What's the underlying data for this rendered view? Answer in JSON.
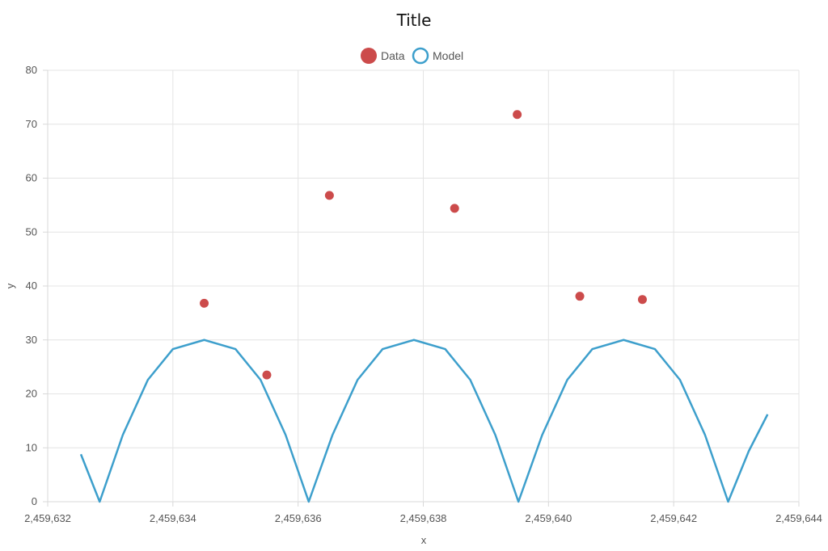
{
  "chart_data": {
    "type": "scatter",
    "title": "Title",
    "xlabel": "x",
    "ylabel": "y",
    "xlim": [
      2459632,
      2459644
    ],
    "ylim": [
      0,
      80
    ],
    "xticks": [
      2459632,
      2459634,
      2459636,
      2459638,
      2459640,
      2459642,
      2459644
    ],
    "xtick_labels": [
      "2,459,632",
      "2,459,634",
      "2,459,636",
      "2,459,638",
      "2,459,640",
      "2,459,642",
      "2,459,644"
    ],
    "yticks": [
      0,
      10,
      20,
      30,
      40,
      50,
      60,
      70,
      80
    ],
    "ytick_labels": [
      "0",
      "10",
      "20",
      "30",
      "40",
      "50",
      "60",
      "70",
      "80"
    ],
    "grid": true,
    "legend": "top-center",
    "series": [
      {
        "name": "Data",
        "type": "scatter",
        "color": "#cc4b4b",
        "x": [
          2459634.5,
          2459635.5,
          2459636.5,
          2459638.5,
          2459639.5,
          2459640.5,
          2459641.5
        ],
        "y": [
          36.8,
          23.5,
          56.8,
          54.4,
          71.8,
          38.1,
          37.5
        ]
      },
      {
        "name": "Model",
        "type": "line",
        "color": "#3d9fcc",
        "x": [
          2459632.53,
          2459632.83,
          2459633.2,
          2459633.6,
          2459634.0,
          2459634.5,
          2459635.0,
          2459635.4,
          2459635.8,
          2459636.17,
          2459636.55,
          2459636.95,
          2459637.35,
          2459637.85,
          2459638.35,
          2459638.75,
          2459639.15,
          2459639.52,
          2459639.9,
          2459640.3,
          2459640.7,
          2459641.2,
          2459641.7,
          2459642.1,
          2459642.5,
          2459642.87,
          2459643.2,
          2459643.5
        ],
        "y": [
          8.8,
          0,
          12.4,
          22.6,
          28.3,
          30.0,
          28.3,
          22.6,
          12.4,
          0,
          12.4,
          22.6,
          28.3,
          30.0,
          28.3,
          22.6,
          12.4,
          0,
          12.4,
          22.6,
          28.3,
          30.0,
          28.3,
          22.6,
          12.4,
          0,
          9.4,
          16.2
        ]
      }
    ]
  }
}
